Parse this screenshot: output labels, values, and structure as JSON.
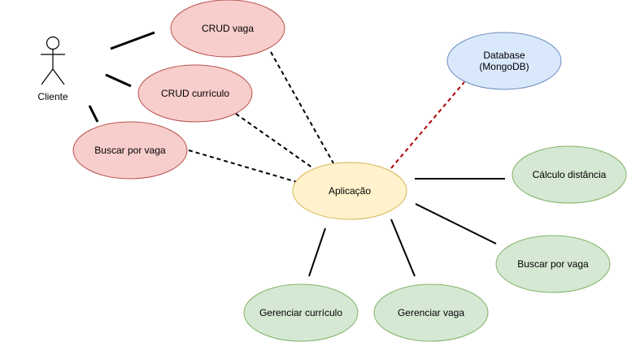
{
  "actor": {
    "label": "Cliente"
  },
  "nodes": {
    "crud_vaga": {
      "label": "CRUD vaga",
      "fill": "#f8cecc",
      "stroke": "#b85450"
    },
    "crud_curriculo": {
      "label": "CRUD currículo",
      "fill": "#f8cecc",
      "stroke": "#b85450"
    },
    "buscar_vaga_cliente": {
      "label": "Buscar por vaga",
      "fill": "#f8cecc",
      "stroke": "#b85450"
    },
    "database": {
      "label_line1": "Database",
      "label_line2": "(MongoDB)",
      "fill": "#dae8fc",
      "stroke": "#6c8ebf"
    },
    "aplicacao": {
      "label": "Aplicação",
      "fill": "#fff2cc",
      "stroke": "#d6b656"
    },
    "calculo_distancia": {
      "label": "Cálculo distância",
      "fill": "#d5e8d4",
      "stroke": "#82b366"
    },
    "buscar_vaga_app": {
      "label": "Buscar por vaga",
      "fill": "#d5e8d4",
      "stroke": "#82b366"
    },
    "gerenciar_curriculo": {
      "label": "Gerenciar currículo",
      "fill": "#d5e8d4",
      "stroke": "#82b366"
    },
    "gerenciar_vaga": {
      "label": "Gerenciar vaga",
      "fill": "#d5e8d4",
      "stroke": "#82b366"
    }
  },
  "colors": {
    "line": "#000000",
    "db_link": "#b20000"
  }
}
